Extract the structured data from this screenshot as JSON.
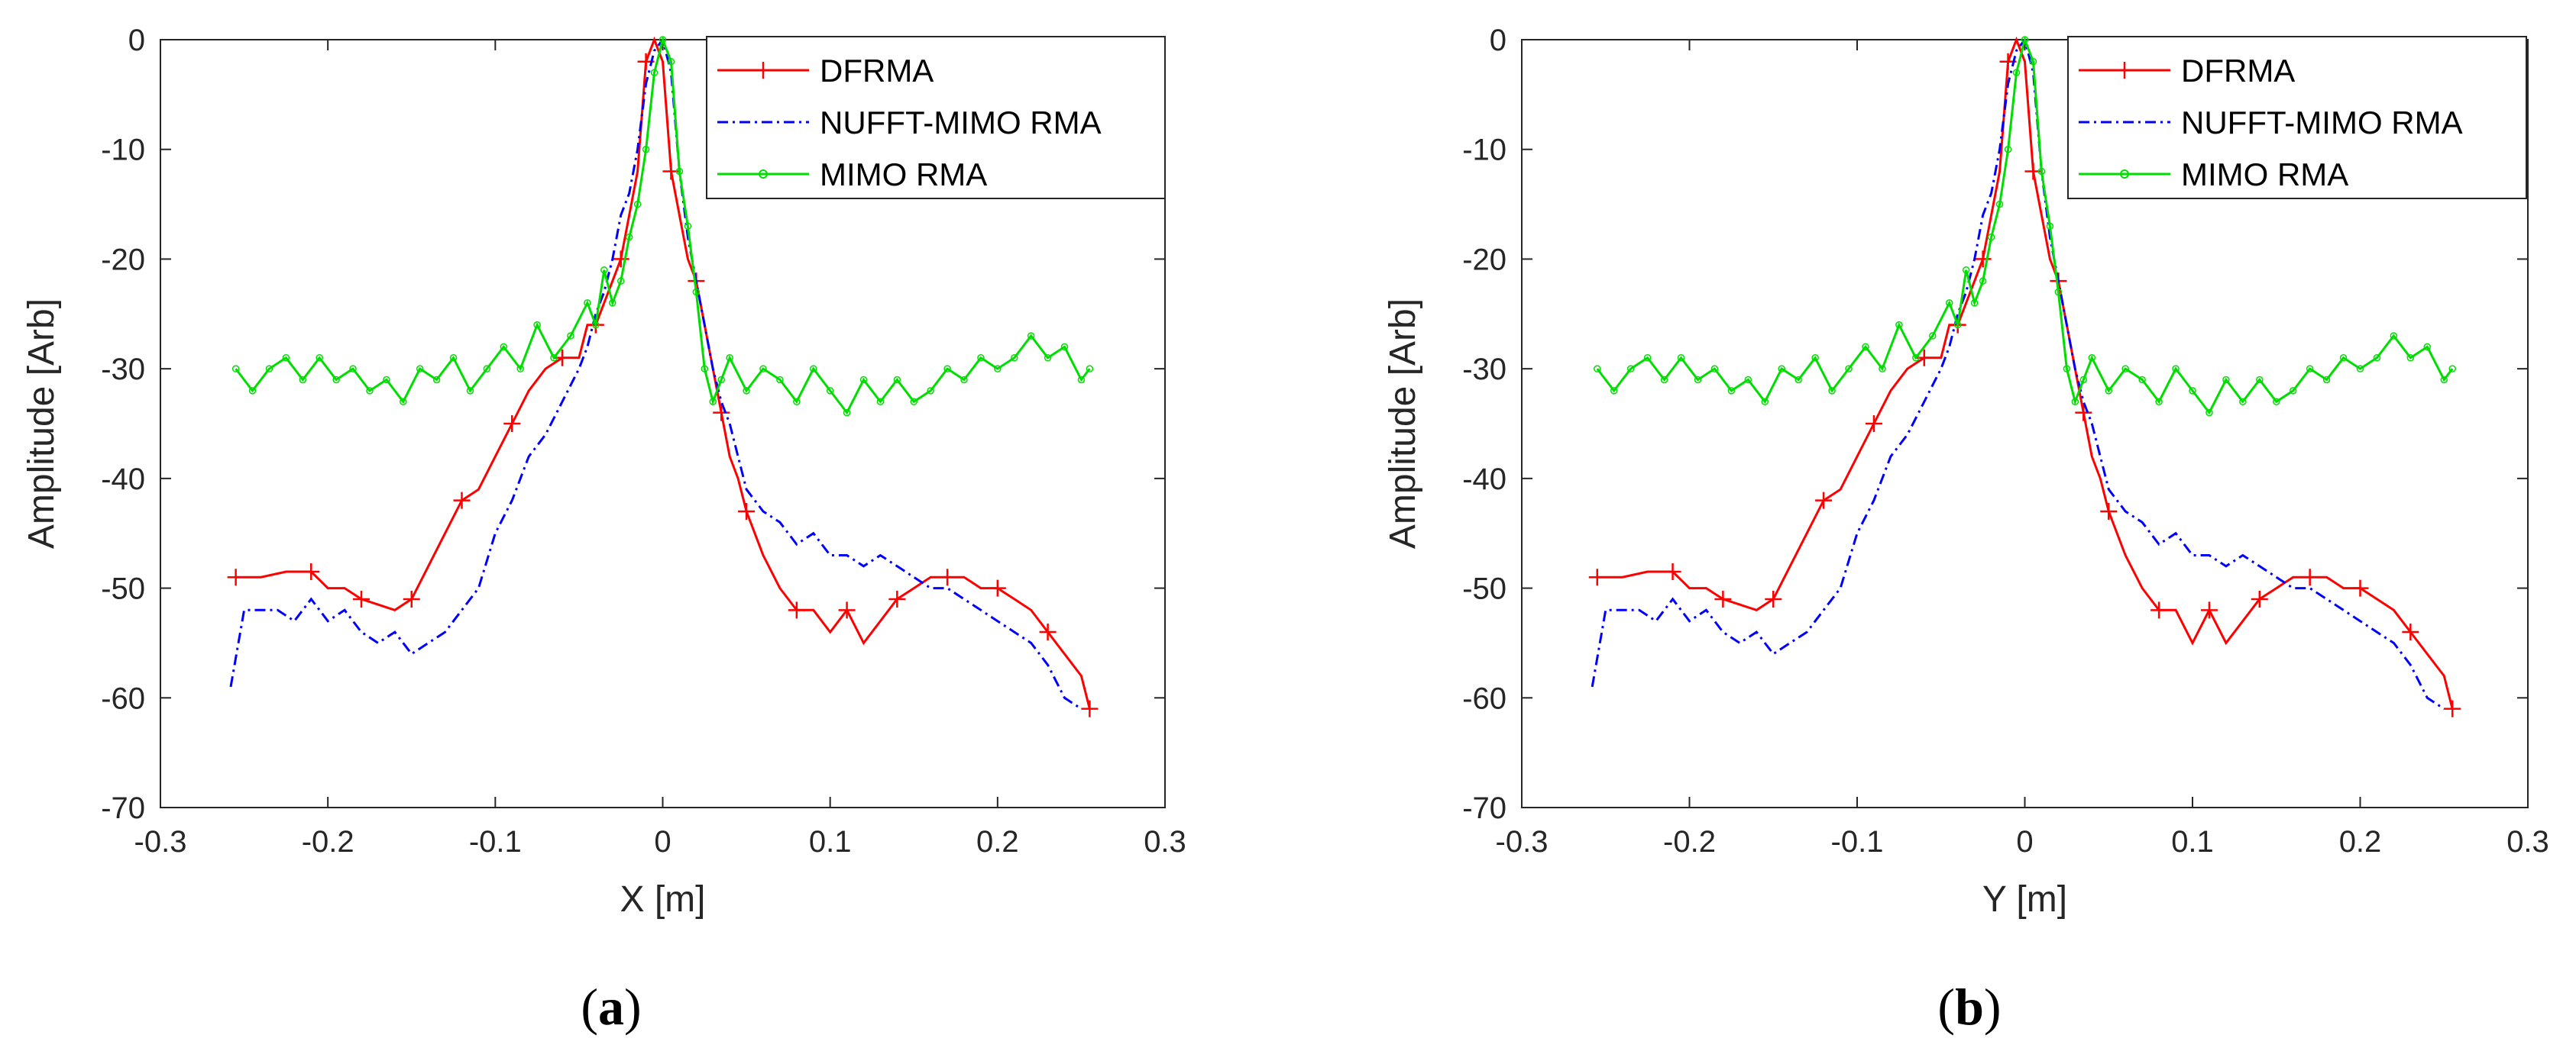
{
  "chart_data": [
    {
      "type": "line",
      "panel_label": "a",
      "xlabel": "X [m]",
      "ylabel": "Amplitude [Arb]",
      "xlim": [
        -0.3,
        0.3
      ],
      "ylim": [
        -70,
        0
      ],
      "xticks": [
        -0.3,
        -0.2,
        -0.1,
        0,
        0.1,
        0.2,
        0.3
      ],
      "yticks": [
        0,
        -10,
        -20,
        -30,
        -40,
        -50,
        -60,
        -70
      ],
      "xtick_labels": [
        "-0.3",
        "-0.2",
        "-0.1",
        "0",
        "0.1",
        "0.2",
        "0.3"
      ],
      "ytick_labels": [
        "0",
        "-10",
        "-20",
        "-30",
        "-40",
        "-50",
        "-60",
        "-70"
      ],
      "legend": [
        "DFRMA",
        "NUFFT-MIMO RMA",
        "MIMO RMA"
      ],
      "series": [
        {
          "name": "DFRMA",
          "color": "#ff0000",
          "style": "solid",
          "marker": "plus",
          "x": [
            -0.255,
            -0.24,
            -0.225,
            -0.21,
            -0.2,
            -0.19,
            -0.18,
            -0.17,
            -0.16,
            -0.15,
            -0.14,
            -0.13,
            -0.12,
            -0.11,
            -0.1,
            -0.09,
            -0.08,
            -0.07,
            -0.06,
            -0.05,
            -0.045,
            -0.04,
            -0.035,
            -0.03,
            -0.025,
            -0.02,
            -0.015,
            -0.01,
            -0.005,
            0,
            0.005,
            0.01,
            0.015,
            0.02,
            0.025,
            0.03,
            0.035,
            0.04,
            0.045,
            0.05,
            0.06,
            0.07,
            0.08,
            0.09,
            0.1,
            0.11,
            0.12,
            0.13,
            0.14,
            0.15,
            0.16,
            0.17,
            0.18,
            0.19,
            0.2,
            0.21,
            0.22,
            0.23,
            0.24,
            0.25,
            0.255
          ],
          "y": [
            -49,
            -49,
            -48.5,
            -48.5,
            -50,
            -50,
            -51,
            -51.5,
            -52,
            -51,
            -48,
            -45,
            -42,
            -41,
            -38,
            -35,
            -32,
            -30,
            -29,
            -29,
            -26,
            -26,
            -24,
            -22,
            -20,
            -16,
            -12,
            -2,
            0,
            -2,
            -12,
            -16,
            -20,
            -22,
            -26,
            -30,
            -34,
            -38,
            -40,
            -43,
            -47,
            -50,
            -52,
            -52,
            -54,
            -52,
            -55,
            -53,
            -51,
            -50,
            -49,
            -49,
            -49,
            -50,
            -50,
            -51,
            -52,
            -54,
            -56,
            -58,
            -61
          ]
        },
        {
          "name": "NUFFT-MIMO RMA",
          "color": "#0000ff",
          "style": "dashdot",
          "marker": "none",
          "x": [
            -0.258,
            -0.25,
            -0.24,
            -0.23,
            -0.22,
            -0.21,
            -0.2,
            -0.19,
            -0.18,
            -0.17,
            -0.16,
            -0.15,
            -0.14,
            -0.13,
            -0.12,
            -0.11,
            -0.1,
            -0.09,
            -0.08,
            -0.07,
            -0.06,
            -0.05,
            -0.045,
            -0.04,
            -0.035,
            -0.03,
            -0.025,
            -0.02,
            -0.015,
            -0.01,
            -0.005,
            0,
            0.005,
            0.01,
            0.015,
            0.02,
            0.025,
            0.03,
            0.035,
            0.04,
            0.045,
            0.05,
            0.06,
            0.07,
            0.08,
            0.09,
            0.1,
            0.11,
            0.12,
            0.13,
            0.14,
            0.15,
            0.16,
            0.17,
            0.18,
            0.19,
            0.2,
            0.21,
            0.22,
            0.23,
            0.24,
            0.25
          ],
          "y": [
            -59,
            -52,
            -52,
            -52,
            -53,
            -51,
            -53,
            -52,
            -54,
            -55,
            -54,
            -56,
            -55,
            -54,
            -52,
            -50,
            -45,
            -42,
            -38,
            -36,
            -33,
            -30,
            -28,
            -25,
            -23,
            -20,
            -16,
            -14,
            -10,
            -4,
            -1,
            0,
            -3,
            -12,
            -18,
            -22,
            -26,
            -30,
            -33,
            -35,
            -38,
            -41,
            -43,
            -44,
            -46,
            -45,
            -47,
            -47,
            -48,
            -47,
            -48,
            -49,
            -50,
            -50,
            -51,
            -52,
            -53,
            -54,
            -55,
            -57,
            -60,
            -61
          ]
        },
        {
          "name": "MIMO RMA",
          "color": "#00dd00",
          "style": "solid",
          "marker": "dot",
          "x": [
            -0.255,
            -0.245,
            -0.235,
            -0.225,
            -0.215,
            -0.205,
            -0.195,
            -0.185,
            -0.175,
            -0.165,
            -0.155,
            -0.145,
            -0.135,
            -0.125,
            -0.115,
            -0.105,
            -0.095,
            -0.085,
            -0.075,
            -0.065,
            -0.055,
            -0.045,
            -0.04,
            -0.035,
            -0.03,
            -0.025,
            -0.02,
            -0.015,
            -0.01,
            -0.005,
            0,
            0.005,
            0.01,
            0.015,
            0.02,
            0.025,
            0.03,
            0.035,
            0.04,
            0.05,
            0.06,
            0.07,
            0.08,
            0.09,
            0.1,
            0.11,
            0.12,
            0.13,
            0.14,
            0.15,
            0.16,
            0.17,
            0.18,
            0.19,
            0.2,
            0.21,
            0.22,
            0.23,
            0.24,
            0.25,
            0.255
          ],
          "y": [
            -30,
            -32,
            -30,
            -29,
            -31,
            -29,
            -31,
            -30,
            -32,
            -31,
            -33,
            -30,
            -31,
            -29,
            -32,
            -30,
            -28,
            -30,
            -26,
            -29,
            -27,
            -24,
            -26,
            -21,
            -24,
            -22,
            -18,
            -15,
            -10,
            -3,
            0,
            -2,
            -12,
            -17,
            -23,
            -30,
            -33,
            -31,
            -29,
            -32,
            -30,
            -31,
            -33,
            -30,
            -32,
            -34,
            -31,
            -33,
            -31,
            -33,
            -32,
            -30,
            -31,
            -29,
            -30,
            -29,
            -27,
            -29,
            -28,
            -31,
            -30
          ]
        }
      ]
    },
    {
      "type": "line",
      "panel_label": "b",
      "xlabel": "Y [m]",
      "ylabel": "Amplitude [Arb]",
      "xlim": [
        -0.3,
        0.3
      ],
      "ylim": [
        -70,
        0
      ],
      "xticks": [
        -0.3,
        -0.2,
        -0.1,
        0,
        0.1,
        0.2,
        0.3
      ],
      "yticks": [
        0,
        -10,
        -20,
        -30,
        -40,
        -50,
        -60,
        -70
      ],
      "xtick_labels": [
        "-0.3",
        "-0.2",
        "-0.1",
        "0",
        "0.1",
        "0.2",
        "0.3"
      ],
      "ytick_labels": [
        "0",
        "-10",
        "-20",
        "-30",
        "-40",
        "-50",
        "-60",
        "-70"
      ],
      "legend": [
        "DFRMA",
        "NUFFT-MIMO RMA",
        "MIMO RMA"
      ],
      "series": [
        {
          "name": "DFRMA",
          "color": "#ff0000",
          "style": "solid",
          "marker": "plus",
          "x": [
            -0.255,
            -0.24,
            -0.225,
            -0.21,
            -0.2,
            -0.19,
            -0.18,
            -0.17,
            -0.16,
            -0.15,
            -0.14,
            -0.13,
            -0.12,
            -0.11,
            -0.1,
            -0.09,
            -0.08,
            -0.07,
            -0.06,
            -0.05,
            -0.045,
            -0.04,
            -0.035,
            -0.03,
            -0.025,
            -0.02,
            -0.015,
            -0.01,
            -0.005,
            0,
            0.005,
            0.01,
            0.015,
            0.02,
            0.025,
            0.03,
            0.035,
            0.04,
            0.045,
            0.05,
            0.06,
            0.07,
            0.08,
            0.09,
            0.1,
            0.11,
            0.12,
            0.13,
            0.14,
            0.15,
            0.16,
            0.17,
            0.18,
            0.19,
            0.2,
            0.21,
            0.22,
            0.23,
            0.24,
            0.25,
            0.255
          ],
          "y": [
            -49,
            -49,
            -48.5,
            -48.5,
            -50,
            -50,
            -51,
            -51.5,
            -52,
            -51,
            -48,
            -45,
            -42,
            -41,
            -38,
            -35,
            -32,
            -30,
            -29,
            -29,
            -26,
            -26,
            -24,
            -22,
            -20,
            -16,
            -12,
            -2,
            0,
            -2,
            -12,
            -16,
            -20,
            -22,
            -26,
            -30,
            -34,
            -38,
            -40,
            -43,
            -47,
            -50,
            -52,
            -52,
            -55,
            -52,
            -55,
            -53,
            -51,
            -50,
            -49,
            -49,
            -49,
            -50,
            -50,
            -51,
            -52,
            -54,
            -56,
            -58,
            -61
          ]
        },
        {
          "name": "NUFFT-MIMO RMA",
          "color": "#0000ff",
          "style": "dashdot",
          "marker": "none",
          "x": [
            -0.258,
            -0.25,
            -0.24,
            -0.23,
            -0.22,
            -0.21,
            -0.2,
            -0.19,
            -0.18,
            -0.17,
            -0.16,
            -0.15,
            -0.14,
            -0.13,
            -0.12,
            -0.11,
            -0.1,
            -0.09,
            -0.08,
            -0.07,
            -0.06,
            -0.05,
            -0.045,
            -0.04,
            -0.035,
            -0.03,
            -0.025,
            -0.02,
            -0.015,
            -0.01,
            -0.005,
            0,
            0.005,
            0.01,
            0.015,
            0.02,
            0.025,
            0.03,
            0.035,
            0.04,
            0.045,
            0.05,
            0.06,
            0.07,
            0.08,
            0.09,
            0.1,
            0.11,
            0.12,
            0.13,
            0.14,
            0.15,
            0.16,
            0.17,
            0.18,
            0.19,
            0.2,
            0.21,
            0.22,
            0.23,
            0.24,
            0.25
          ],
          "y": [
            -59,
            -52,
            -52,
            -52,
            -53,
            -51,
            -53,
            -52,
            -54,
            -55,
            -54,
            -56,
            -55,
            -54,
            -52,
            -50,
            -45,
            -42,
            -38,
            -36,
            -33,
            -30,
            -28,
            -25,
            -23,
            -20,
            -16,
            -14,
            -10,
            -4,
            -1,
            0,
            -3,
            -12,
            -18,
            -22,
            -26,
            -30,
            -33,
            -35,
            -38,
            -41,
            -43,
            -44,
            -46,
            -45,
            -47,
            -47,
            -48,
            -47,
            -48,
            -49,
            -50,
            -50,
            -51,
            -52,
            -53,
            -54,
            -55,
            -57,
            -60,
            -61
          ]
        },
        {
          "name": "MIMO RMA",
          "color": "#00dd00",
          "style": "solid",
          "marker": "dot",
          "x": [
            -0.255,
            -0.245,
            -0.235,
            -0.225,
            -0.215,
            -0.205,
            -0.195,
            -0.185,
            -0.175,
            -0.165,
            -0.155,
            -0.145,
            -0.135,
            -0.125,
            -0.115,
            -0.105,
            -0.095,
            -0.085,
            -0.075,
            -0.065,
            -0.055,
            -0.045,
            -0.04,
            -0.035,
            -0.03,
            -0.025,
            -0.02,
            -0.015,
            -0.01,
            -0.005,
            0,
            0.005,
            0.01,
            0.015,
            0.02,
            0.025,
            0.03,
            0.035,
            0.04,
            0.05,
            0.06,
            0.07,
            0.08,
            0.09,
            0.1,
            0.11,
            0.12,
            0.13,
            0.14,
            0.15,
            0.16,
            0.17,
            0.18,
            0.19,
            0.2,
            0.21,
            0.22,
            0.23,
            0.24,
            0.25,
            0.255
          ],
          "y": [
            -30,
            -32,
            -30,
            -29,
            -31,
            -29,
            -31,
            -30,
            -32,
            -31,
            -33,
            -30,
            -31,
            -29,
            -32,
            -30,
            -28,
            -30,
            -26,
            -29,
            -27,
            -24,
            -26,
            -21,
            -24,
            -22,
            -18,
            -15,
            -10,
            -3,
            0,
            -2,
            -12,
            -17,
            -23,
            -30,
            -33,
            -31,
            -29,
            -32,
            -30,
            -31,
            -33,
            -30,
            -32,
            -34,
            -31,
            -33,
            -31,
            -33,
            -32,
            -30,
            -31,
            -29,
            -30,
            -29,
            -27,
            -29,
            -28,
            -31,
            -30
          ]
        }
      ]
    }
  ]
}
